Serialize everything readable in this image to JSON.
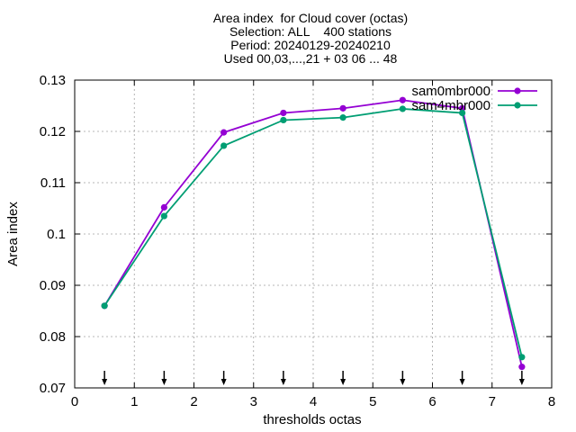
{
  "chart_data": {
    "type": "line",
    "title_lines": [
      "Area index  for Cloud cover (octas)",
      "Selection: ALL    400 stations",
      "Period: 20240129-20240210",
      "Used 00,03,...,21 + 03 06 ... 48"
    ],
    "xlabel": "thresholds octas",
    "ylabel": "Area index",
    "xlim": [
      0,
      8
    ],
    "ylim": [
      0.07,
      0.13
    ],
    "x_ticks": [
      "0",
      "1",
      "2",
      "3",
      "4",
      "5",
      "6",
      "7",
      "8"
    ],
    "y_ticks": [
      "0.07",
      "0.08",
      "0.09",
      "0.1",
      "0.11",
      "0.12",
      "0.13"
    ],
    "grid": true,
    "legend_position": "top-right",
    "x": [
      0.5,
      1.5,
      2.5,
      3.5,
      4.5,
      5.5,
      6.5,
      7.5
    ],
    "series": [
      {
        "name": "sam0mbr000",
        "color": "#9400d3",
        "values": [
          0.086,
          0.1052,
          0.1198,
          0.1236,
          0.1245,
          0.1261,
          0.1245,
          0.0741
        ]
      },
      {
        "name": "sam4mbr000",
        "color": "#009e73",
        "values": [
          0.086,
          0.1035,
          0.1172,
          0.1222,
          0.1227,
          0.1244,
          0.1236,
          0.076
        ]
      }
    ],
    "arrow_x": [
      0.5,
      1.5,
      2.5,
      3.5,
      4.5,
      5.5,
      6.5,
      7.5
    ]
  }
}
